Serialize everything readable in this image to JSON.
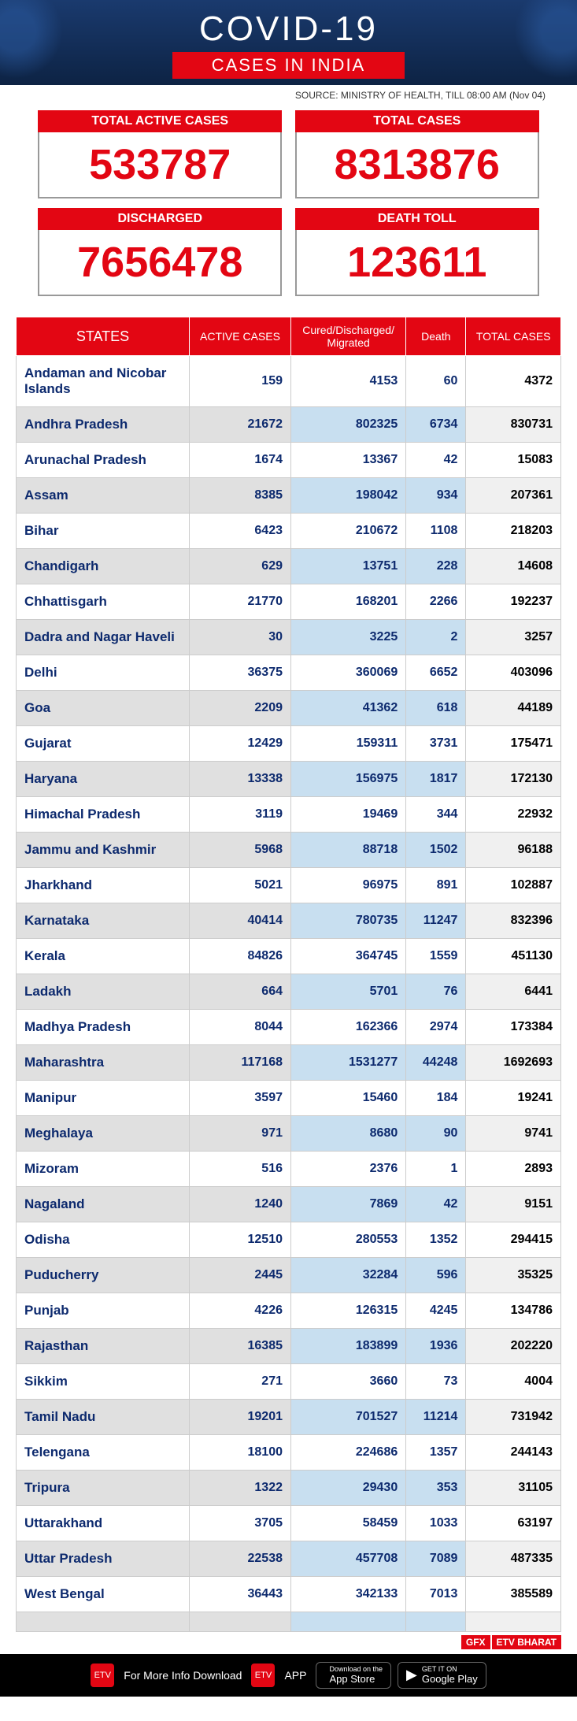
{
  "header": {
    "title": "COVID-19",
    "subtitle": "CASES IN INDIA"
  },
  "source": "SOURCE: MINISTRY OF HEALTH, TILL 08:00 AM (Nov 04)",
  "stats": [
    {
      "label": "TOTAL ACTIVE CASES",
      "value": "533787"
    },
    {
      "label": "TOTAL CASES",
      "value": "8313876"
    },
    {
      "label": "DISCHARGED",
      "value": "7656478"
    },
    {
      "label": "DEATH TOLL",
      "value": "123611"
    }
  ],
  "columns": [
    "STATES",
    "ACTIVE CASES",
    "Cured/Discharged/\nMigrated",
    "Death",
    "TOTAL CASES"
  ],
  "rows": [
    [
      "Andaman and Nicobar Islands",
      "159",
      "4153",
      "60",
      "4372"
    ],
    [
      "Andhra Pradesh",
      "21672",
      "802325",
      "6734",
      "830731"
    ],
    [
      "Arunachal Pradesh",
      "1674",
      "13367",
      "42",
      "15083"
    ],
    [
      "Assam",
      "8385",
      "198042",
      "934",
      "207361"
    ],
    [
      "Bihar",
      "6423",
      "210672",
      "1108",
      "218203"
    ],
    [
      "Chandigarh",
      "629",
      "13751",
      "228",
      "14608"
    ],
    [
      "Chhattisgarh",
      "21770",
      "168201",
      "2266",
      "192237"
    ],
    [
      "Dadra and Nagar Haveli",
      "30",
      "3225",
      "2",
      "3257"
    ],
    [
      "Delhi",
      "36375",
      "360069",
      "6652",
      "403096"
    ],
    [
      "Goa",
      "2209",
      "41362",
      "618",
      "44189"
    ],
    [
      "Gujarat",
      "12429",
      "159311",
      "3731",
      "175471"
    ],
    [
      "Haryana",
      "13338",
      "156975",
      "1817",
      "172130"
    ],
    [
      "Himachal Pradesh",
      "3119",
      "19469",
      "344",
      "22932"
    ],
    [
      "Jammu and Kashmir",
      "5968",
      "88718",
      "1502",
      "96188"
    ],
    [
      "Jharkhand",
      "5021",
      "96975",
      "891",
      "102887"
    ],
    [
      "Karnataka",
      "40414",
      "780735",
      "11247",
      "832396"
    ],
    [
      "Kerala",
      "84826",
      "364745",
      "1559",
      "451130"
    ],
    [
      "Ladakh",
      "664",
      "5701",
      "76",
      "6441"
    ],
    [
      "Madhya Pradesh",
      "8044",
      "162366",
      "2974",
      "173384"
    ],
    [
      "Maharashtra",
      "117168",
      "1531277",
      "44248",
      "1692693"
    ],
    [
      "Manipur",
      "3597",
      "15460",
      "184",
      "19241"
    ],
    [
      "Meghalaya",
      "971",
      "8680",
      "90",
      "9741"
    ],
    [
      "Mizoram",
      "516",
      "2376",
      "1",
      "2893"
    ],
    [
      "Nagaland",
      "1240",
      "7869",
      "42",
      "9151"
    ],
    [
      "Odisha",
      "12510",
      "280553",
      "1352",
      "294415"
    ],
    [
      "Puducherry",
      "2445",
      "32284",
      "596",
      "35325"
    ],
    [
      "Punjab",
      "4226",
      "126315",
      "4245",
      "134786"
    ],
    [
      "Rajasthan",
      "16385",
      "183899",
      "1936",
      "202220"
    ],
    [
      "Sikkim",
      "271",
      "3660",
      "73",
      "4004"
    ],
    [
      "Tamil Nadu",
      "19201",
      "701527",
      "11214",
      "731942"
    ],
    [
      "Telengana",
      "18100",
      "224686",
      "1357",
      "244143"
    ],
    [
      "Tripura",
      "1322",
      "29430",
      "353",
      "31105"
    ],
    [
      "Uttarakhand",
      "3705",
      "58459",
      "1033",
      "63197"
    ],
    [
      "Uttar Pradesh",
      "22538",
      "457708",
      "7089",
      "487335"
    ],
    [
      "West Bengal",
      "36443",
      "342133",
      "7013",
      "385589"
    ],
    [
      "",
      "",
      "",
      "",
      ""
    ]
  ],
  "gfx": [
    "GFX",
    "ETV BHARAT"
  ],
  "footer": {
    "text": "For More Info Download",
    "app": "APP",
    "stores": [
      {
        "small": "Download on the",
        "big": "App Store",
        "icon": ""
      },
      {
        "small": "GET IT ON",
        "big": "Google Play",
        "icon": "▶"
      }
    ]
  }
}
